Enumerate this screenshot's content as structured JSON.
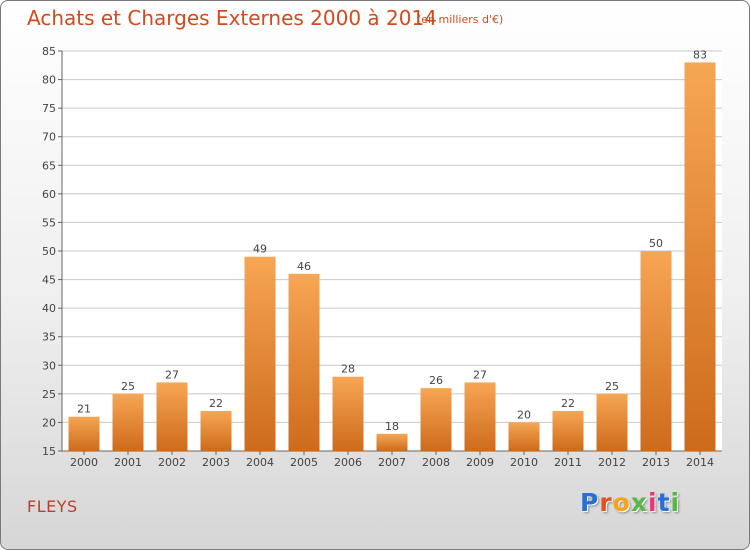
{
  "header": {
    "title": "Achats et Charges Externes 2000 à 2014",
    "unit": "(en milliers d'€)"
  },
  "footer": {
    "commune": "FLEYS",
    "logo": "Proxiti",
    "logo_colors": [
      "#2a6fd1",
      "#e94e1b",
      "#f7a21b",
      "#57b846",
      "#e6397a",
      "#2a6fd1",
      "#57b846"
    ]
  },
  "colors": {
    "title": "#d24a1e",
    "bar_light": "#f5a04e",
    "bar_dark": "#cc6a1a",
    "grid": "#c8c8c8"
  },
  "chart_data": {
    "type": "bar",
    "title": "Achats et Charges Externes 2000 à 2014",
    "subtitle": "(en milliers d'€)",
    "categories": [
      "2000",
      "2001",
      "2002",
      "2003",
      "2004",
      "2005",
      "2006",
      "2007",
      "2008",
      "2009",
      "2010",
      "2011",
      "2012",
      "2013",
      "2014"
    ],
    "values": [
      21,
      25,
      27,
      22,
      49,
      46,
      28,
      18,
      26,
      27,
      20,
      22,
      25,
      50,
      83
    ],
    "ylim": [
      15,
      85
    ],
    "yticks": [
      15,
      20,
      25,
      30,
      35,
      40,
      45,
      50,
      55,
      60,
      65,
      70,
      75,
      80,
      85
    ],
    "grid": true,
    "data_labels": true
  }
}
